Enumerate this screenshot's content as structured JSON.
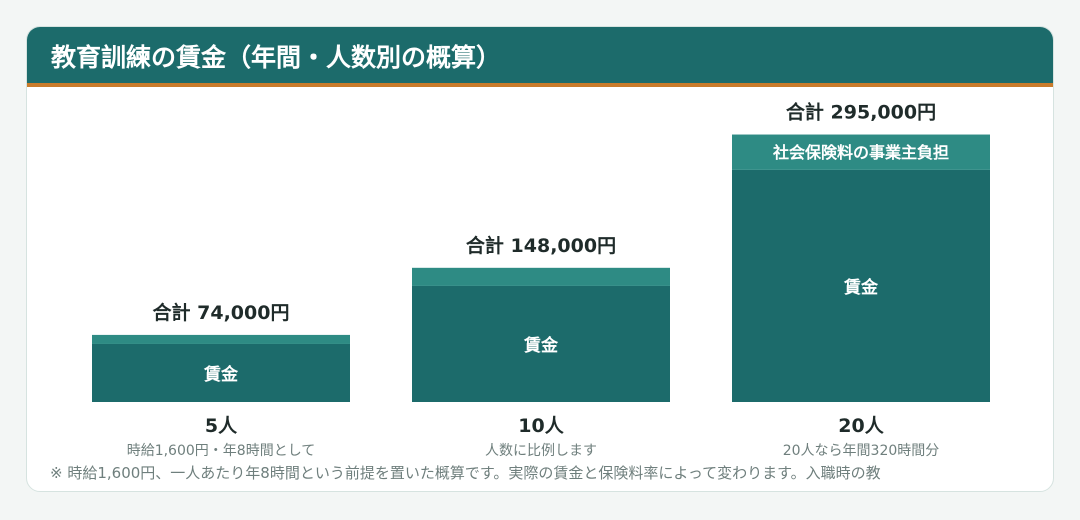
{
  "title": "教育訓練の賃金（年間・人数別の概算）",
  "colors": {
    "bar": "#1c6b6b",
    "cap": "#2e8b84",
    "accent": "#c97b2b",
    "text": "#1f2b2a",
    "subtext": "#6f7f7d"
  },
  "chart_data": {
    "type": "bar",
    "stacked": true,
    "categories": [
      "5人",
      "10人",
      "20人"
    ],
    "category_notes": [
      "時給1,600円・年8時間として",
      "人数に比例します",
      "20人なら年間320時間分"
    ],
    "totals": [
      74000,
      148000,
      295000
    ],
    "total_labels": [
      "合計 74,000円",
      "合計 148,000円",
      "合計 295,000円"
    ],
    "series": [
      {
        "name": "賃金",
        "values": [
          64000,
          128000,
          256000
        ]
      },
      {
        "name": "社会保険料の事業主負担",
        "values": [
          10000,
          20000,
          39000
        ]
      }
    ],
    "segment_labels": [
      "賃金",
      "社会保険料の事業主負担"
    ],
    "cap_label_shown_on": [
      2
    ],
    "ylim": [
      0,
      300000
    ]
  },
  "note": "※ 時給1,600円、一人あたり年8時間という前提を置いた概算です。実際の賃金と保険料率によって変わります。入職時の教"
}
